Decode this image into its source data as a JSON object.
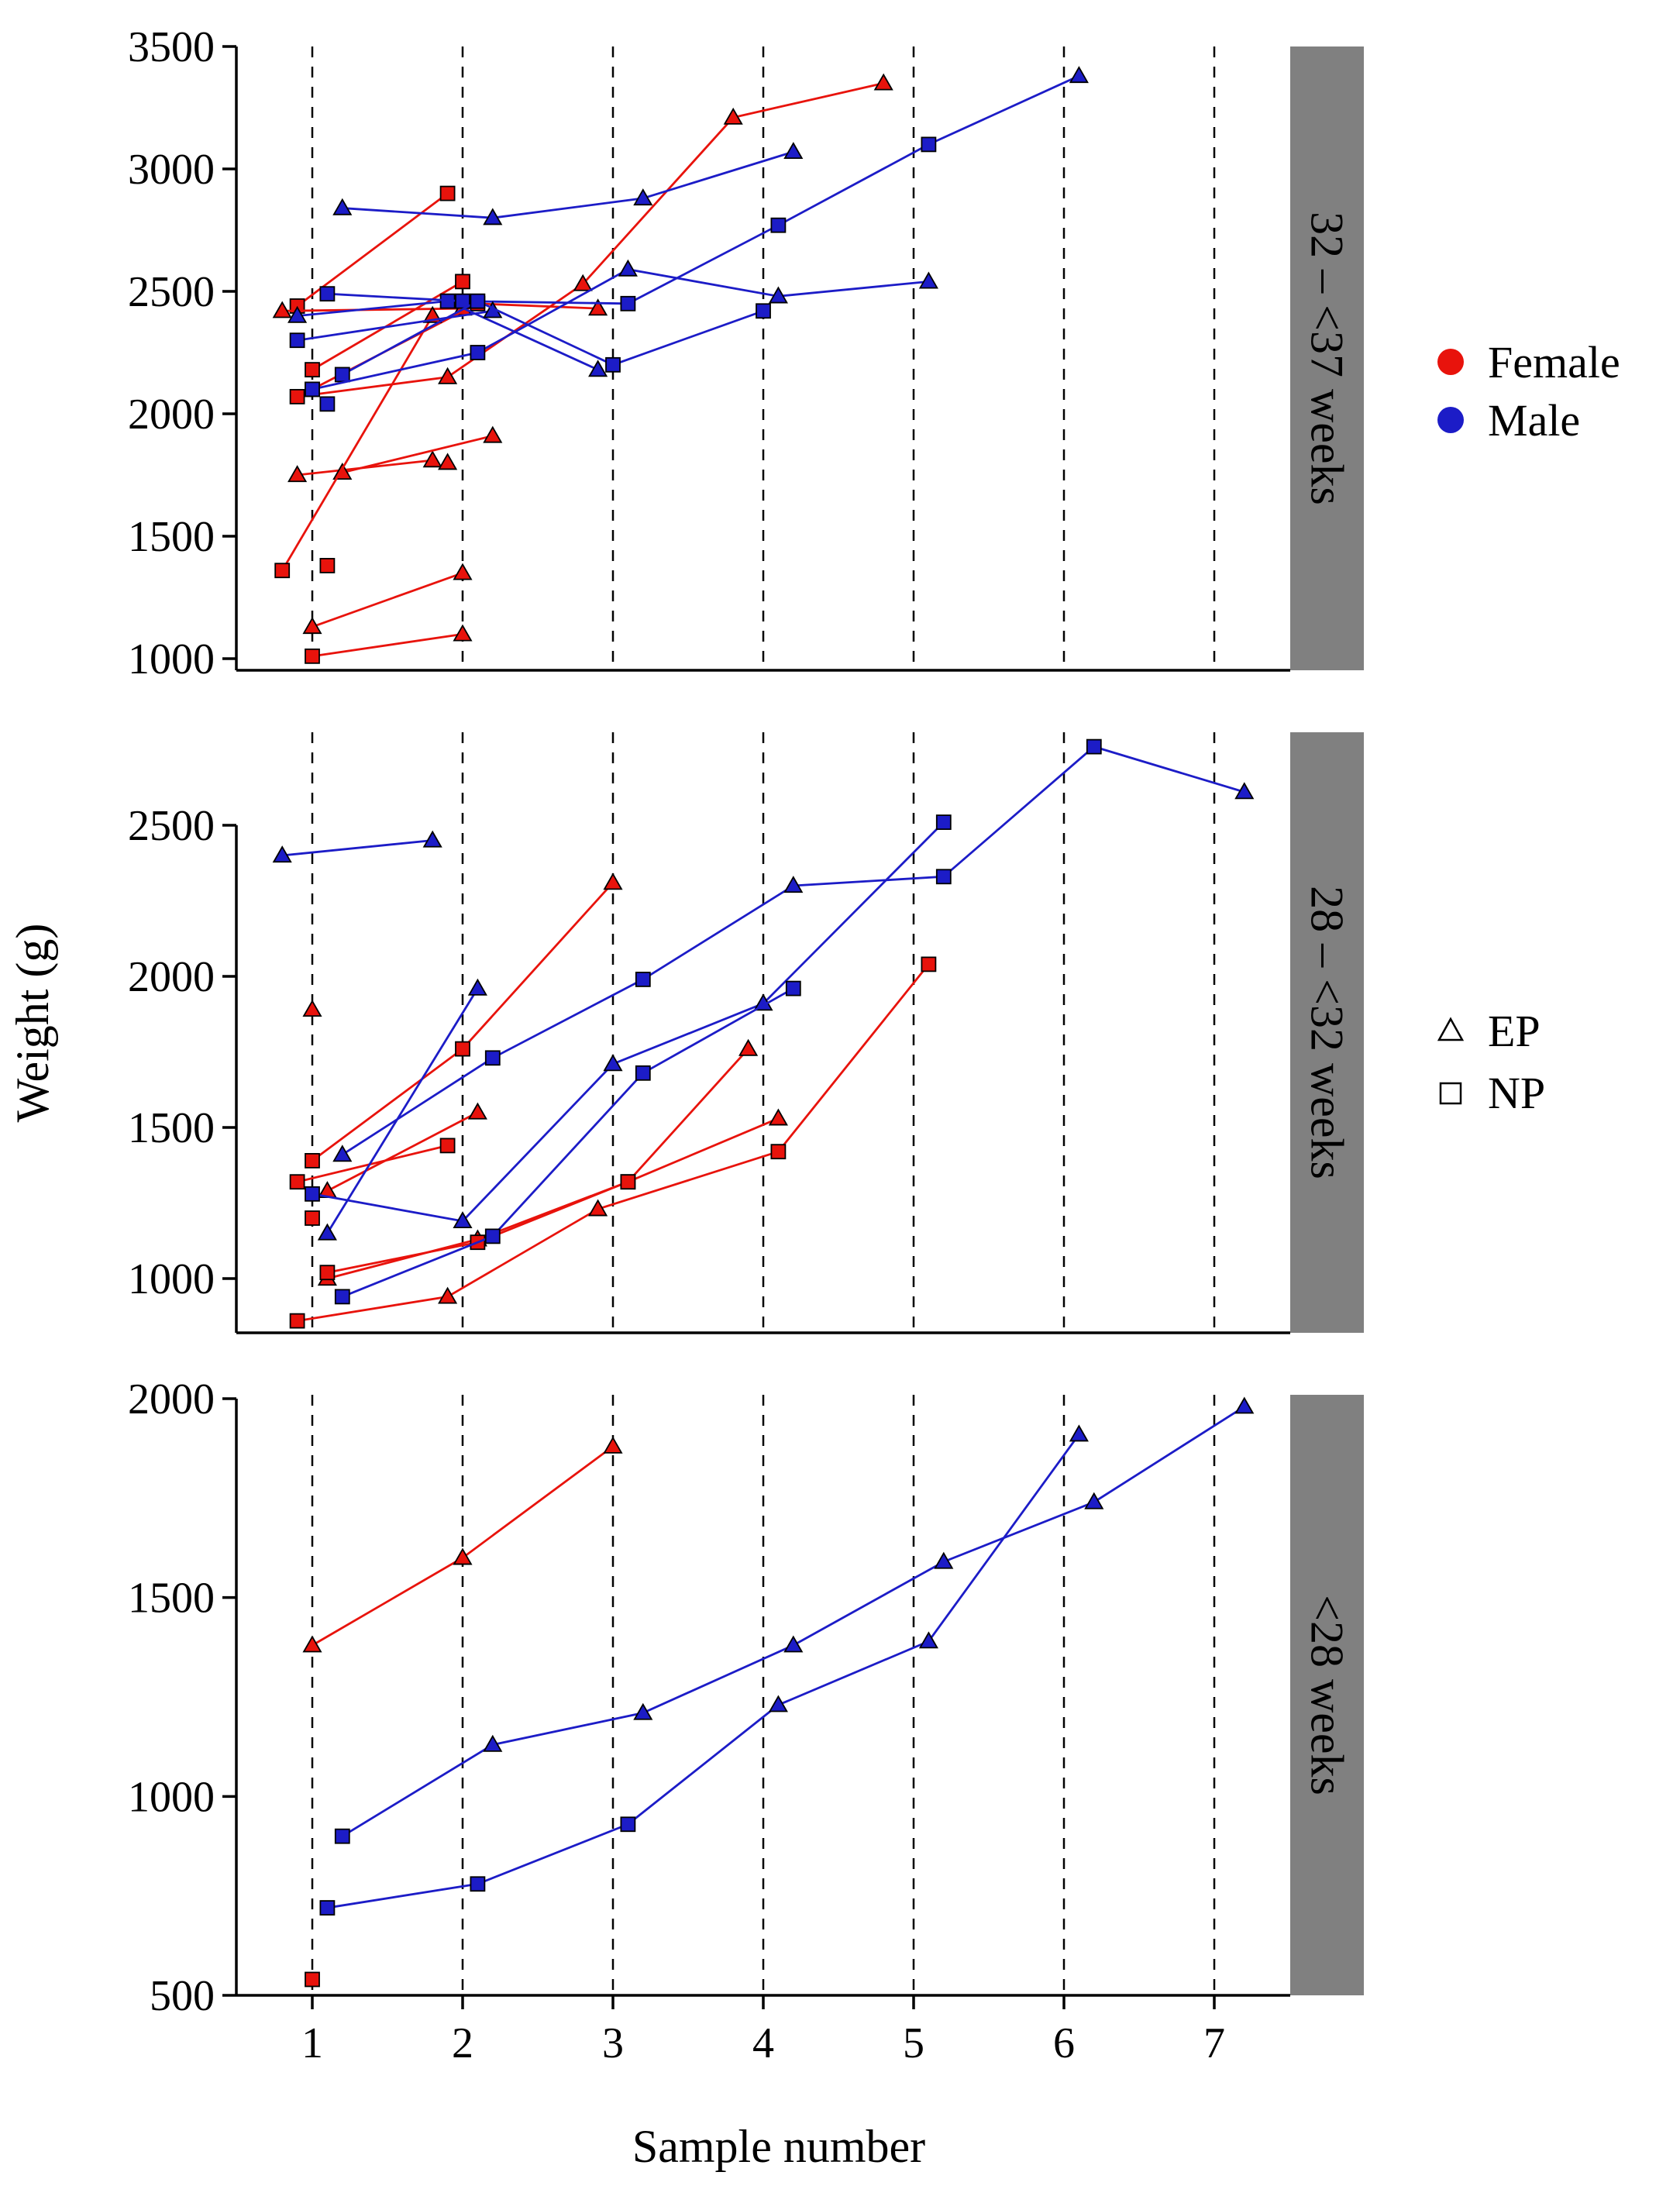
{
  "chart_data": {
    "type": "line",
    "xlabel": "Sample number",
    "ylabel": "Weight (g)",
    "x_ticks": [
      1,
      2,
      3,
      4,
      5,
      6,
      7
    ],
    "x_tick_labels": [
      "1",
      "2",
      "3",
      "4",
      "5",
      "6",
      "7"
    ],
    "xlim": [
      0.5,
      7.5
    ],
    "reference_lines_x": [
      1,
      2,
      3,
      4,
      5,
      6,
      7
    ],
    "colors": {
      "Female": "#e8130c",
      "Male": "#1c1cc7",
      "strip": "#808080"
    },
    "legend_sex": [
      {
        "label": "Female",
        "color": "#e8130c"
      },
      {
        "label": "Male",
        "color": "#1c1cc7"
      }
    ],
    "legend_type": [
      {
        "label": "EP",
        "marker": "triangle"
      },
      {
        "label": "NP",
        "marker": "square"
      }
    ],
    "panels": [
      {
        "strip": "32 – <37 weeks",
        "ylim": [
          1000,
          3500
        ],
        "y_ticks": [
          1000,
          1500,
          2000,
          2500,
          3000,
          3500
        ],
        "y_tick_labels": [
          "1000",
          "1500",
          "2000",
          "2500",
          "3000",
          "3500"
        ],
        "series": [
          {
            "sex": "Female",
            "points": [
              [
                0.9,
                2440,
                "NP"
              ],
              [
                1.9,
                2900,
                "NP"
              ]
            ]
          },
          {
            "sex": "Female",
            "points": [
              [
                0.8,
                2420,
                "EP"
              ],
              [
                2.0,
                2430,
                "EP"
              ]
            ]
          },
          {
            "sex": "Female",
            "points": [
              [
                1.0,
                2180,
                "NP"
              ],
              [
                2.0,
                2540,
                "NP"
              ]
            ]
          },
          {
            "sex": "Female",
            "points": [
              [
                0.9,
                2070,
                "NP"
              ],
              [
                1.9,
                2150,
                "EP"
              ],
              [
                2.8,
                2530,
                "EP"
              ],
              [
                3.8,
                3210,
                "EP"
              ],
              [
                4.8,
                3350,
                "EP"
              ]
            ]
          },
          {
            "sex": "Female",
            "points": [
              [
                1.0,
                2100,
                "NP"
              ],
              [
                2.1,
                2450,
                "NP"
              ],
              [
                2.9,
                2430,
                "EP"
              ]
            ]
          },
          {
            "sex": "Female",
            "points": [
              [
                0.9,
                1750,
                "EP"
              ],
              [
                1.8,
                1810,
                "EP"
              ]
            ]
          },
          {
            "sex": "Female",
            "points": [
              [
                1.2,
                1760,
                "EP"
              ],
              [
                2.2,
                1910,
                "EP"
              ]
            ]
          },
          {
            "sex": "Female",
            "points": [
              [
                1.9,
                1800,
                "EP"
              ]
            ]
          },
          {
            "sex": "Female",
            "points": [
              [
                0.8,
                1360,
                "NP"
              ],
              [
                1.8,
                2400,
                "EP"
              ]
            ]
          },
          {
            "sex": "Female",
            "points": [
              [
                1.1,
                1380,
                "NP"
              ]
            ]
          },
          {
            "sex": "Female",
            "points": [
              [
                1.0,
                1130,
                "EP"
              ],
              [
                2.0,
                1350,
                "EP"
              ]
            ]
          },
          {
            "sex": "Female",
            "points": [
              [
                1.0,
                1010,
                "NP"
              ],
              [
                2.0,
                1100,
                "EP"
              ]
            ]
          },
          {
            "sex": "Male",
            "points": [
              [
                1.2,
                2840,
                "EP"
              ],
              [
                2.2,
                2800,
                "EP"
              ],
              [
                3.2,
                2880,
                "EP"
              ],
              [
                4.2,
                3070,
                "EP"
              ]
            ]
          },
          {
            "sex": "Male",
            "points": [
              [
                0.9,
                2400,
                "EP"
              ],
              [
                1.9,
                2460,
                "NP"
              ],
              [
                2.9,
                2180,
                "EP"
              ]
            ]
          },
          {
            "sex": "Male",
            "points": [
              [
                1.1,
                2490,
                "NP"
              ],
              [
                2.0,
                2460,
                "NP"
              ],
              [
                3.1,
                2450,
                "NP"
              ],
              [
                4.1,
                2770,
                "NP"
              ],
              [
                5.1,
                3100,
                "NP"
              ],
              [
                6.1,
                3380,
                "EP"
              ]
            ]
          },
          {
            "sex": "Male",
            "points": [
              [
                0.9,
                2300,
                "NP"
              ],
              [
                2.2,
                2420,
                "EP"
              ]
            ]
          },
          {
            "sex": "Male",
            "points": [
              [
                1.2,
                2160,
                "NP"
              ],
              [
                2.1,
                2460,
                "NP"
              ],
              [
                3.0,
                2200,
                "NP"
              ],
              [
                4.0,
                2420,
                "NP"
              ]
            ]
          },
          {
            "sex": "Male",
            "points": [
              [
                1.0,
                2100,
                "NP"
              ],
              [
                2.1,
                2250,
                "NP"
              ],
              [
                3.1,
                2590,
                "EP"
              ],
              [
                4.1,
                2480,
                "EP"
              ],
              [
                5.1,
                2540,
                "EP"
              ]
            ]
          },
          {
            "sex": "Male",
            "points": [
              [
                1.1,
                2040,
                "NP"
              ]
            ]
          }
        ]
      },
      {
        "strip": "28 – <32 weeks",
        "ylim": [
          800,
          2800
        ],
        "y_ticks": [
          1000,
          1500,
          2000,
          2500
        ],
        "y_tick_labels": [
          "1000",
          "1500",
          "2000",
          "2500"
        ],
        "series": [
          {
            "sex": "Female",
            "points": [
              [
                1.0,
                1390,
                "NP"
              ],
              [
                2.0,
                1760,
                "NP"
              ],
              [
                3.0,
                2310,
                "EP"
              ]
            ]
          },
          {
            "sex": "Female",
            "points": [
              [
                0.9,
                1320,
                "NP"
              ],
              [
                1.9,
                1440,
                "NP"
              ]
            ]
          },
          {
            "sex": "Female",
            "points": [
              [
                1.1,
                1290,
                "EP"
              ],
              [
                2.1,
                1550,
                "EP"
              ]
            ]
          },
          {
            "sex": "Female",
            "points": [
              [
                1.0,
                1890,
                "EP"
              ]
            ]
          },
          {
            "sex": "Female",
            "points": [
              [
                1.0,
                1200,
                "NP"
              ]
            ]
          },
          {
            "sex": "Female",
            "points": [
              [
                1.1,
                1000,
                "EP"
              ],
              [
                2.1,
                1130,
                "EP"
              ],
              [
                3.1,
                1320,
                "NP"
              ],
              [
                3.9,
                1760,
                "EP"
              ]
            ]
          },
          {
            "sex": "Female",
            "points": [
              [
                1.1,
                1020,
                "NP"
              ],
              [
                2.1,
                1120,
                "NP"
              ],
              [
                3.1,
                1320,
                "NP"
              ],
              [
                4.1,
                1530,
                "EP"
              ]
            ]
          },
          {
            "sex": "Female",
            "points": [
              [
                0.9,
                860,
                "NP"
              ],
              [
                1.9,
                940,
                "EP"
              ],
              [
                2.9,
                1230,
                "EP"
              ],
              [
                4.1,
                1420,
                "NP"
              ],
              [
                5.1,
                2040,
                "NP"
              ]
            ]
          },
          {
            "sex": "Male",
            "points": [
              [
                0.8,
                2400,
                "EP"
              ],
              [
                1.8,
                2450,
                "EP"
              ]
            ]
          },
          {
            "sex": "Male",
            "points": [
              [
                1.2,
                1410,
                "EP"
              ],
              [
                2.2,
                1730,
                "NP"
              ],
              [
                3.2,
                1990,
                "NP"
              ],
              [
                4.2,
                2300,
                "EP"
              ],
              [
                5.2,
                2330,
                "NP"
              ],
              [
                6.2,
                2760,
                "NP"
              ],
              [
                7.2,
                2610,
                "EP"
              ]
            ]
          },
          {
            "sex": "Male",
            "points": [
              [
                1.1,
                1150,
                "EP"
              ],
              [
                2.1,
                1960,
                "EP"
              ]
            ]
          },
          {
            "sex": "Male",
            "points": [
              [
                1.0,
                1280,
                "NP"
              ],
              [
                2.0,
                1190,
                "EP"
              ],
              [
                3.0,
                1710,
                "EP"
              ],
              [
                4.0,
                1910,
                "EP"
              ],
              [
                5.2,
                2510,
                "NP"
              ]
            ]
          },
          {
            "sex": "Male",
            "points": [
              [
                1.2,
                940,
                "NP"
              ],
              [
                2.2,
                1140,
                "NP"
              ],
              [
                3.2,
                1680,
                "NP"
              ],
              [
                4.2,
                1960,
                "NP"
              ]
            ]
          }
        ]
      },
      {
        "strip": "<28 weeks",
        "ylim": [
          500,
          2000
        ],
        "y_ticks": [
          500,
          1000,
          1500,
          2000
        ],
        "y_tick_labels": [
          "500",
          "1000",
          "1500",
          "2000"
        ],
        "series": [
          {
            "sex": "Female",
            "points": [
              [
                1.0,
                1380,
                "EP"
              ],
              [
                2.0,
                1600,
                "EP"
              ],
              [
                3.0,
                1880,
                "EP"
              ]
            ]
          },
          {
            "sex": "Female",
            "points": [
              [
                1.0,
                540,
                "NP"
              ]
            ]
          },
          {
            "sex": "Male",
            "points": [
              [
                1.2,
                900,
                "NP"
              ],
              [
                2.2,
                1130,
                "EP"
              ],
              [
                3.2,
                1210,
                "EP"
              ],
              [
                4.2,
                1380,
                "EP"
              ],
              [
                5.2,
                1590,
                "EP"
              ],
              [
                6.2,
                1740,
                "EP"
              ],
              [
                7.2,
                1980,
                "EP"
              ]
            ]
          },
          {
            "sex": "Male",
            "points": [
              [
                1.1,
                720,
                "NP"
              ],
              [
                2.1,
                780,
                "NP"
              ],
              [
                3.1,
                930,
                "NP"
              ],
              [
                4.1,
                1230,
                "EP"
              ],
              [
                5.1,
                1390,
                "EP"
              ],
              [
                6.1,
                1910,
                "EP"
              ]
            ]
          }
        ]
      }
    ]
  }
}
